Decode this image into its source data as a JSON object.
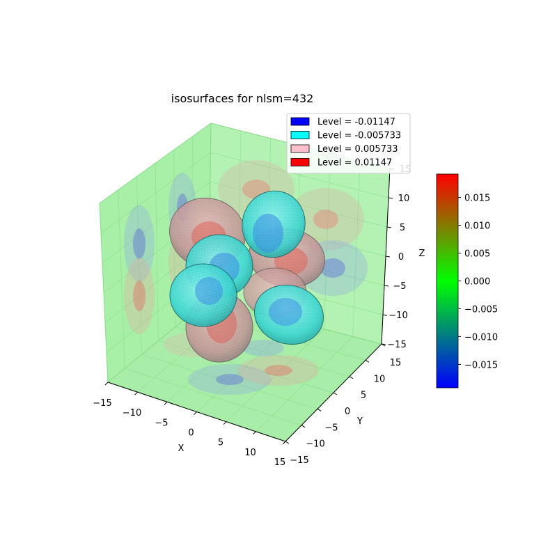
{
  "chart_data": {
    "type": "isosurface-3d",
    "title": "isosurfaces for nlsm=432",
    "xlabel": "X",
    "ylabel": "Y",
    "zlabel": "Z",
    "xlim": [
      -15,
      15
    ],
    "ylim": [
      -15,
      15
    ],
    "zlim": [
      -15,
      15
    ],
    "x_ticks": [
      -15,
      -10,
      -5,
      0,
      5,
      10,
      15
    ],
    "y_ticks": [
      -15,
      -10,
      -5,
      0,
      5,
      10,
      15
    ],
    "z_ticks": [
      -15,
      -10,
      -5,
      0,
      5,
      10,
      15
    ],
    "x_tick_labels": [
      "−15",
      "−10",
      "−5",
      "0",
      "5",
      "10",
      "15"
    ],
    "y_tick_labels": [
      "−15",
      "−10",
      "−5",
      "0",
      "5",
      "10",
      "15"
    ],
    "z_tick_labels": [
      "−15",
      "−10",
      "−5",
      "0",
      "5",
      "10",
      "15"
    ],
    "legend_placement": "top-right",
    "legend": [
      {
        "label": "Level = -0.01147",
        "color": "#0000ff"
      },
      {
        "label": "Level = -0.005733",
        "color": "#00ffff"
      },
      {
        "label": "Level = 0.005733",
        "color": "#ffc0cb"
      },
      {
        "label": "Level = 0.01147",
        "color": "#ff0000"
      }
    ],
    "colorbar": {
      "range": [
        -0.0192,
        0.0192
      ],
      "ticks": [
        -0.015,
        -0.01,
        -0.005,
        0.0,
        0.005,
        0.01,
        0.015
      ],
      "tick_labels": [
        "−0.015",
        "−0.010",
        "−0.005",
        "0.000",
        "0.005",
        "0.010",
        "0.015"
      ],
      "colormap": [
        "#0000ff",
        "#00ff00",
        "#ff0000"
      ]
    },
    "pane_color": "#a8f0a8",
    "grid": true
  }
}
